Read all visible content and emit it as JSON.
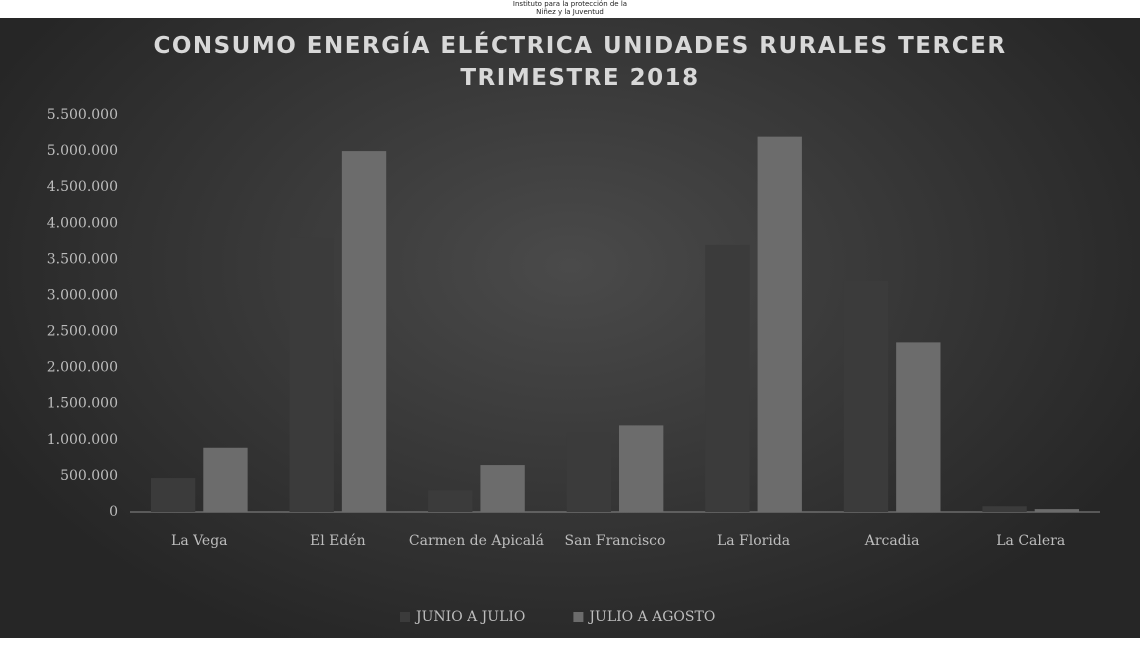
{
  "header": [
    "Instituto para la protección de la",
    "Niñez y la Juventud"
  ],
  "chart_data": {
    "type": "bar",
    "title": "CONSUMO ENERGÍA ELÉCTRICA UNIDADES RURALES TERCER TRIMESTRE 2018",
    "categories": [
      "La Vega",
      "El Edén",
      "Carmen de Apicalá",
      "San Francisco",
      "La Florida",
      "Arcadia",
      "La Calera"
    ],
    "series": [
      {
        "name": "JUNIO A JULIO",
        "color": "#3b3b3b",
        "values": [
          470000,
          3800000,
          300000,
          1100000,
          3700000,
          3200000,
          80000
        ]
      },
      {
        "name": "JULIO A AGOSTO",
        "color": "#6c6c6c",
        "values": [
          890000,
          5000000,
          650000,
          1200000,
          5200000,
          2350000,
          40000
        ]
      }
    ],
    "ylim": [
      0,
      5500000
    ],
    "yticks": [
      0,
      {
        "value": 500000,
        "label": "500.000"
      },
      {
        "value": 1000000,
        "label": "1.000.000"
      },
      {
        "value": 1500000,
        "label": "1.500.000"
      },
      {
        "value": 2000000,
        "label": "2.000.000"
      },
      {
        "value": 2500000,
        "label": "2.500.000"
      },
      {
        "value": 3000000,
        "label": "3.000.000"
      },
      {
        "value": 3500000,
        "label": "3.500.000"
      },
      {
        "value": 4000000,
        "label": "4.000.000"
      },
      {
        "value": 4500000,
        "label": "4.500.000"
      },
      {
        "value": 5000000,
        "label": "5.000.000"
      },
      {
        "value": 5500000,
        "label": "5.500.000"
      }
    ],
    "legend": "bottom",
    "grid": false
  }
}
